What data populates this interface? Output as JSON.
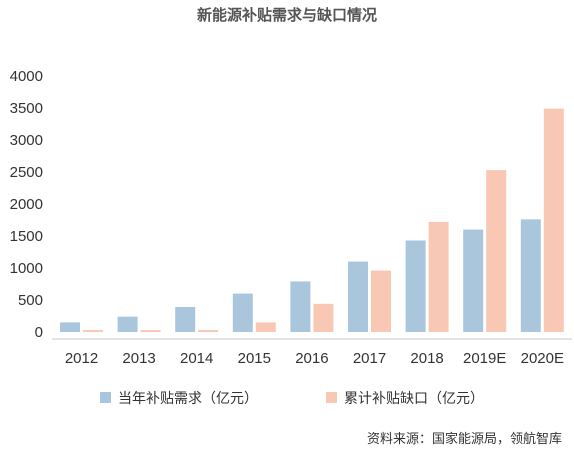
{
  "chart_data": {
    "type": "bar",
    "title": "新能源补贴需求与缺口情况",
    "categories": [
      "2012",
      "2013",
      "2014",
      "2015",
      "2016",
      "2017",
      "2018",
      "2019E",
      "2020E"
    ],
    "series": [
      {
        "name": "当年补贴需求（亿元）",
        "color": "#a9c6dc",
        "values": [
          150,
          240,
          390,
          600,
          790,
          1100,
          1430,
          1600,
          1760
        ]
      },
      {
        "name": "累计补贴缺口（亿元）",
        "color": "#f9c8b5",
        "values": [
          30,
          30,
          30,
          150,
          440,
          960,
          1720,
          2530,
          3490
        ]
      }
    ],
    "yticks": [
      "4000",
      "3500",
      "3000",
      "2500",
      "2000",
      "1500",
      "1000",
      "500",
      "0"
    ],
    "ylim": [
      0,
      4000
    ],
    "grid": false,
    "legend": "bottom"
  },
  "source": "资料来源：国家能源局，领航智库"
}
